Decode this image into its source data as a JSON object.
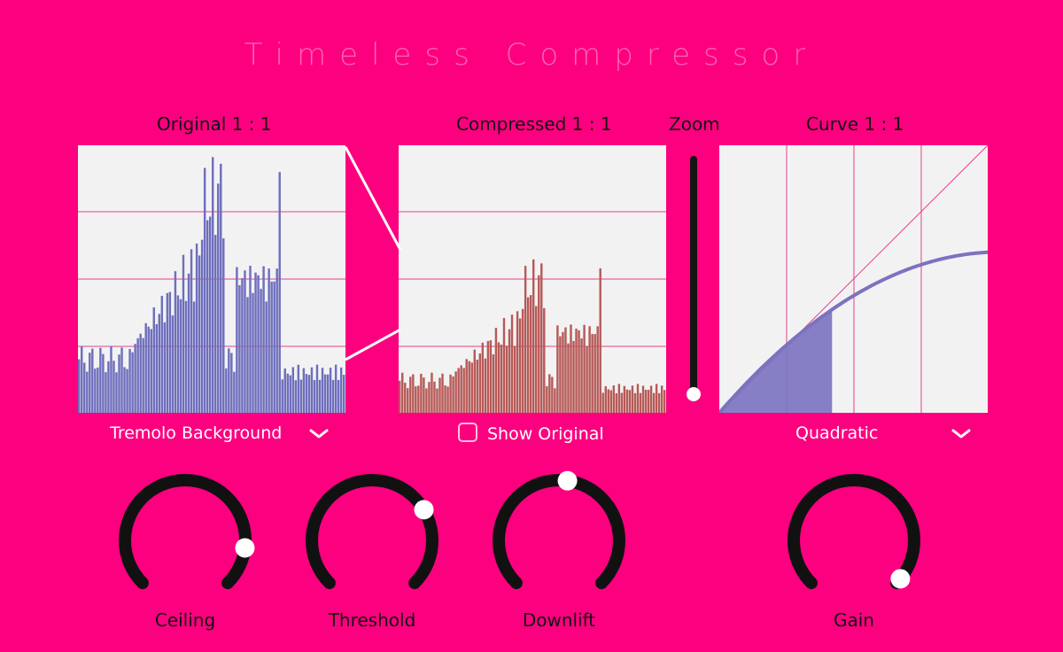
{
  "app": {
    "title": "Timeless Compressor"
  },
  "panels": {
    "original": {
      "label": "Original 1 : 1"
    },
    "compressed": {
      "label": "Compressed 1 : 1"
    },
    "zoom": {
      "label": "Zoom",
      "value": 0.03
    },
    "curve": {
      "label": "Curve 1 : 1"
    }
  },
  "controls": {
    "preset_select": {
      "value": "Tremolo Background"
    },
    "show_original": {
      "label": "Show Original",
      "checked": false
    },
    "curve_select": {
      "value": "Quadratic"
    }
  },
  "knobs": [
    {
      "label": "Ceiling",
      "value": 0.86
    },
    {
      "label": "Threshold",
      "value": 0.72
    },
    {
      "label": "Downlift",
      "value": 0.53
    },
    {
      "label": "Gain",
      "value": 0.98
    }
  ],
  "colors": {
    "background": "#fd007f",
    "panel": "#f2f2f2",
    "original_bars": "#6e6ebd",
    "compressed_bars": "#b65a58",
    "curve": "#7b72c0",
    "grid": "#e2408f",
    "knob_track": "#111111"
  }
}
